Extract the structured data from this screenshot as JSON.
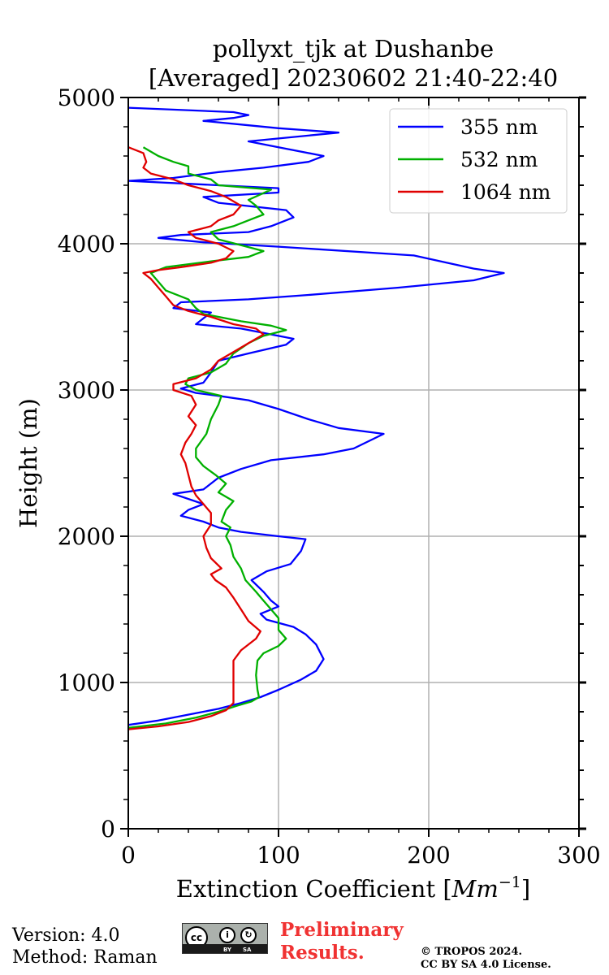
{
  "chart_data": {
    "type": "line",
    "title_line1": "pollyxt_tjk at Dushanbe",
    "title_line2": "[Averaged] 20230602 21:40-22:40",
    "xlabel": "Extinction Coefficient [",
    "xlabel_unit": "Mm",
    "xlabel_exp": "−1",
    "xlabel_close": "]",
    "ylabel": "Height (m)",
    "xlim": [
      0,
      300
    ],
    "ylim": [
      0,
      5000
    ],
    "xticks": [
      "0",
      "100",
      "200",
      "300"
    ],
    "yticks": [
      "0",
      "1000",
      "2000",
      "3000",
      "4000",
      "5000"
    ],
    "grid": true,
    "legend_position": "top-right",
    "series": [
      {
        "name": "355 nm",
        "color": "#0000ff",
        "points": [
          [
            0,
            710
          ],
          [
            20,
            740
          ],
          [
            45,
            790
          ],
          [
            60,
            820
          ],
          [
            75,
            860
          ],
          [
            88,
            900
          ],
          [
            100,
            950
          ],
          [
            115,
            1020
          ],
          [
            125,
            1080
          ],
          [
            130,
            1160
          ],
          [
            125,
            1260
          ],
          [
            118,
            1330
          ],
          [
            110,
            1380
          ],
          [
            92,
            1430
          ],
          [
            88,
            1470
          ],
          [
            100,
            1520
          ],
          [
            95,
            1560
          ],
          [
            90,
            1620
          ],
          [
            82,
            1700
          ],
          [
            92,
            1760
          ],
          [
            108,
            1810
          ],
          [
            115,
            1900
          ],
          [
            118,
            1980
          ],
          [
            100,
            2000
          ],
          [
            75,
            2030
          ],
          [
            60,
            2060
          ],
          [
            50,
            2100
          ],
          [
            35,
            2140
          ],
          [
            40,
            2180
          ],
          [
            50,
            2220
          ],
          [
            30,
            2290
          ],
          [
            50,
            2320
          ],
          [
            60,
            2400
          ],
          [
            75,
            2460
          ],
          [
            95,
            2520
          ],
          [
            130,
            2560
          ],
          [
            150,
            2600
          ],
          [
            170,
            2700
          ],
          [
            140,
            2740
          ],
          [
            120,
            2800
          ],
          [
            100,
            2870
          ],
          [
            80,
            2930
          ],
          [
            60,
            2960
          ],
          [
            45,
            2980
          ],
          [
            35,
            3010
          ],
          [
            50,
            3050
          ],
          [
            55,
            3120
          ],
          [
            60,
            3200
          ],
          [
            80,
            3250
          ],
          [
            105,
            3310
          ],
          [
            110,
            3350
          ],
          [
            90,
            3390
          ],
          [
            75,
            3420
          ],
          [
            45,
            3450
          ],
          [
            55,
            3530
          ],
          [
            30,
            3560
          ],
          [
            35,
            3600
          ],
          [
            80,
            3620
          ],
          [
            120,
            3650
          ],
          [
            180,
            3700
          ],
          [
            230,
            3750
          ],
          [
            250,
            3800
          ],
          [
            230,
            3830
          ],
          [
            190,
            3920
          ],
          [
            100,
            3980
          ],
          [
            50,
            4010
          ],
          [
            20,
            4040
          ],
          [
            35,
            4060
          ],
          [
            80,
            4080
          ],
          [
            95,
            4120
          ],
          [
            110,
            4180
          ],
          [
            105,
            4230
          ],
          [
            60,
            4280
          ],
          [
            50,
            4320
          ],
          [
            100,
            4350
          ],
          [
            100,
            4380
          ],
          [
            60,
            4400
          ],
          [
            0,
            4430
          ],
          [
            30,
            4450
          ],
          [
            60,
            4490
          ],
          [
            90,
            4520
          ],
          [
            120,
            4560
          ],
          [
            130,
            4600
          ],
          [
            100,
            4660
          ],
          [
            80,
            4700
          ],
          [
            140,
            4760
          ],
          [
            100,
            4790
          ],
          [
            80,
            4810
          ],
          [
            50,
            4840
          ],
          [
            70,
            4860
          ],
          [
            80,
            4880
          ],
          [
            70,
            4900
          ],
          [
            0,
            4930
          ]
        ]
      },
      {
        "name": "532 nm",
        "color": "#00b000",
        "points": [
          [
            0,
            690
          ],
          [
            25,
            720
          ],
          [
            45,
            760
          ],
          [
            60,
            800
          ],
          [
            72,
            840
          ],
          [
            82,
            870
          ],
          [
            87,
            900
          ],
          [
            86,
            950
          ],
          [
            85,
            1050
          ],
          [
            86,
            1150
          ],
          [
            90,
            1200
          ],
          [
            100,
            1250
          ],
          [
            105,
            1300
          ],
          [
            100,
            1360
          ],
          [
            100,
            1440
          ],
          [
            95,
            1500
          ],
          [
            90,
            1560
          ],
          [
            85,
            1620
          ],
          [
            78,
            1700
          ],
          [
            75,
            1780
          ],
          [
            70,
            1860
          ],
          [
            68,
            1940
          ],
          [
            65,
            2000
          ],
          [
            68,
            2060
          ],
          [
            62,
            2100
          ],
          [
            65,
            2180
          ],
          [
            70,
            2240
          ],
          [
            60,
            2300
          ],
          [
            65,
            2360
          ],
          [
            58,
            2420
          ],
          [
            50,
            2480
          ],
          [
            45,
            2540
          ],
          [
            45,
            2600
          ],
          [
            52,
            2700
          ],
          [
            55,
            2800
          ],
          [
            60,
            2900
          ],
          [
            62,
            2960
          ],
          [
            45,
            3000
          ],
          [
            38,
            3040
          ],
          [
            40,
            3080
          ],
          [
            55,
            3120
          ],
          [
            65,
            3180
          ],
          [
            70,
            3250
          ],
          [
            80,
            3320
          ],
          [
            90,
            3370
          ],
          [
            105,
            3410
          ],
          [
            95,
            3440
          ],
          [
            75,
            3470
          ],
          [
            50,
            3520
          ],
          [
            45,
            3560
          ],
          [
            40,
            3620
          ],
          [
            25,
            3680
          ],
          [
            20,
            3740
          ],
          [
            15,
            3800
          ],
          [
            25,
            3840
          ],
          [
            55,
            3880
          ],
          [
            80,
            3910
          ],
          [
            90,
            3950
          ],
          [
            75,
            3990
          ],
          [
            60,
            4030
          ],
          [
            55,
            4080
          ],
          [
            70,
            4120
          ],
          [
            80,
            4160
          ],
          [
            90,
            4200
          ],
          [
            85,
            4260
          ],
          [
            80,
            4300
          ],
          [
            95,
            4370
          ],
          [
            60,
            4400
          ],
          [
            55,
            4440
          ],
          [
            40,
            4480
          ],
          [
            40,
            4530
          ],
          [
            30,
            4560
          ],
          [
            20,
            4600
          ],
          [
            10,
            4660
          ]
        ]
      },
      {
        "name": "1064 nm",
        "color": "#e00000",
        "points": [
          [
            0,
            680
          ],
          [
            20,
            700
          ],
          [
            40,
            730
          ],
          [
            55,
            770
          ],
          [
            65,
            810
          ],
          [
            70,
            860
          ],
          [
            70,
            950
          ],
          [
            70,
            1050
          ],
          [
            70,
            1150
          ],
          [
            75,
            1220
          ],
          [
            85,
            1300
          ],
          [
            88,
            1350
          ],
          [
            80,
            1420
          ],
          [
            75,
            1500
          ],
          [
            70,
            1580
          ],
          [
            65,
            1650
          ],
          [
            58,
            1700
          ],
          [
            55,
            1740
          ],
          [
            62,
            1780
          ],
          [
            55,
            1850
          ],
          [
            52,
            1920
          ],
          [
            50,
            2000
          ],
          [
            55,
            2080
          ],
          [
            55,
            2160
          ],
          [
            50,
            2220
          ],
          [
            45,
            2280
          ],
          [
            42,
            2340
          ],
          [
            40,
            2420
          ],
          [
            38,
            2500
          ],
          [
            35,
            2560
          ],
          [
            38,
            2640
          ],
          [
            42,
            2700
          ],
          [
            45,
            2760
          ],
          [
            40,
            2820
          ],
          [
            45,
            2900
          ],
          [
            42,
            2960
          ],
          [
            30,
            3000
          ],
          [
            30,
            3040
          ],
          [
            45,
            3080
          ],
          [
            55,
            3140
          ],
          [
            60,
            3200
          ],
          [
            70,
            3260
          ],
          [
            80,
            3320
          ],
          [
            90,
            3380
          ],
          [
            85,
            3420
          ],
          [
            70,
            3450
          ],
          [
            55,
            3500
          ],
          [
            40,
            3540
          ],
          [
            30,
            3580
          ],
          [
            25,
            3640
          ],
          [
            20,
            3700
          ],
          [
            15,
            3760
          ],
          [
            10,
            3800
          ],
          [
            20,
            3820
          ],
          [
            35,
            3840
          ],
          [
            55,
            3870
          ],
          [
            65,
            3900
          ],
          [
            70,
            3950
          ],
          [
            60,
            4000
          ],
          [
            45,
            4040
          ],
          [
            40,
            4080
          ],
          [
            55,
            4120
          ],
          [
            60,
            4160
          ],
          [
            70,
            4200
          ],
          [
            75,
            4260
          ],
          [
            65,
            4320
          ],
          [
            55,
            4360
          ],
          [
            40,
            4400
          ],
          [
            30,
            4440
          ],
          [
            15,
            4480
          ],
          [
            10,
            4520
          ],
          [
            12,
            4560
          ],
          [
            10,
            4620
          ],
          [
            0,
            4660
          ]
        ]
      }
    ]
  },
  "footer": {
    "version": "Version: 4.0",
    "method": "Method: Raman",
    "cc_label": "cc",
    "cc_by": "BY",
    "cc_sa": "SA",
    "preliminary_line1": "Preliminary",
    "preliminary_line2": "Results.",
    "copyright_line1": "© TROPOS 2024.",
    "copyright_line2": "CC BY SA 4.0 License."
  }
}
